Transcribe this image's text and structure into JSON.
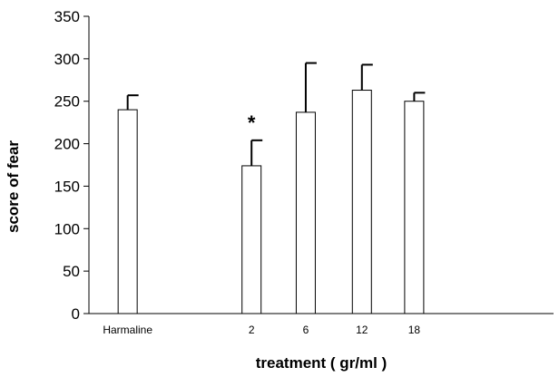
{
  "chart_data": {
    "type": "bar",
    "categories": [
      "Harmaline",
      "2",
      "6",
      "12",
      "18"
    ],
    "values": [
      240,
      174,
      237,
      263,
      250
    ],
    "errors": [
      17,
      30,
      58,
      30,
      10
    ],
    "annotations": [
      {
        "category": "2",
        "text": "*"
      }
    ],
    "title": "",
    "xlabel": "treatment ( gr/ml )",
    "ylabel": "score of fear",
    "ylim": [
      0,
      350
    ],
    "yticks": [
      0,
      50,
      100,
      150,
      200,
      250,
      300,
      350
    ],
    "x_range": [
      0,
      12
    ],
    "x_positions": [
      1,
      4.2,
      5.6,
      7.05,
      8.4
    ],
    "grid": false,
    "legend": "none",
    "bar_fill": "#ffffff",
    "bar_stroke": "#000000"
  }
}
